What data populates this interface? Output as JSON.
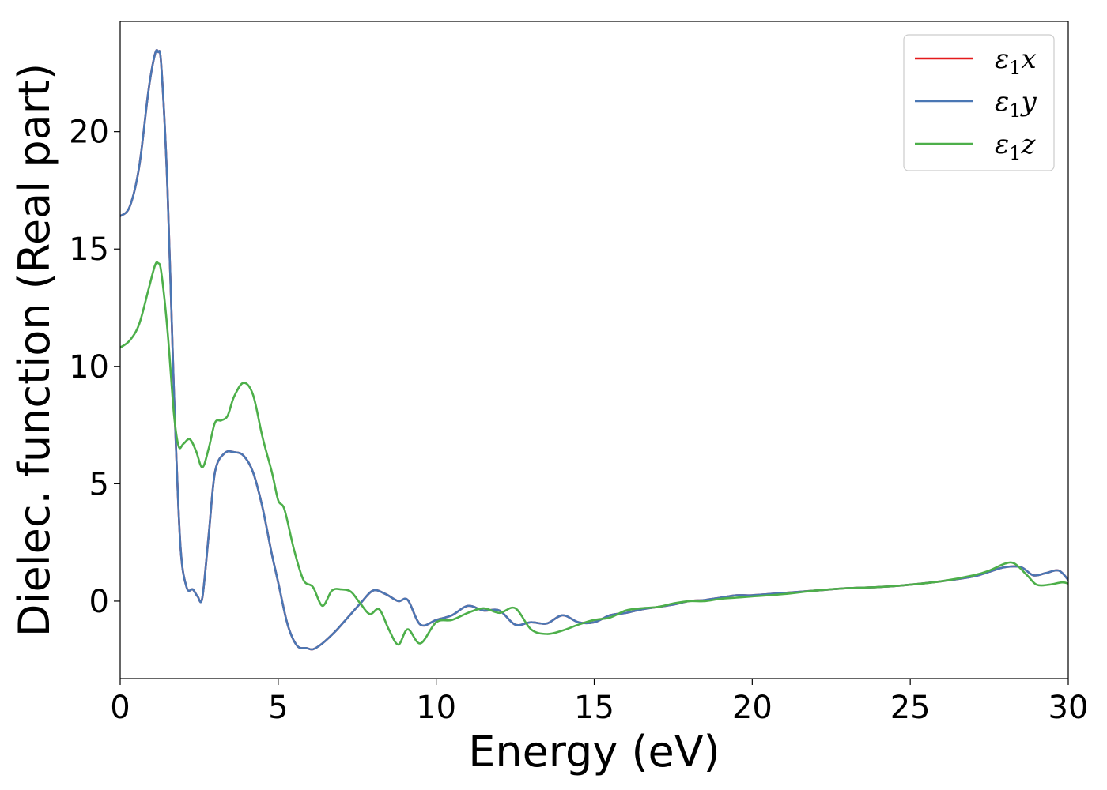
{
  "chart_data": {
    "type": "line",
    "title": "",
    "xlabel": "Energy (eV)",
    "ylabel": "Dielec. function (Real part)",
    "xlim": [
      0,
      30
    ],
    "ylim": [
      -3.3,
      24.7
    ],
    "xticks": [
      0,
      5,
      10,
      15,
      20,
      25,
      30
    ],
    "yticks": [
      0,
      5,
      10,
      15,
      20
    ],
    "grid": false,
    "legend_position": "top-right",
    "series": [
      {
        "name": "ε₁x",
        "legend_base": "ε",
        "legend_sub": "1",
        "legend_suffix": "x",
        "color": "#e41a1c",
        "x": [
          0,
          0.3,
          0.6,
          0.9,
          1.1,
          1.2,
          1.3,
          1.5,
          1.7,
          1.9,
          2.1,
          2.3,
          2.45,
          2.6,
          2.8,
          3.0,
          3.3,
          3.6,
          3.9,
          4.2,
          4.5,
          4.8,
          5.0,
          5.3,
          5.6,
          5.9,
          6.1,
          6.4,
          6.8,
          7.2,
          7.6,
          8.0,
          8.4,
          8.8,
          9.1,
          9.5,
          10.0,
          10.5,
          11.0,
          11.5,
          12.0,
          12.5,
          13.0,
          13.5,
          14.0,
          14.5,
          15.0,
          15.5,
          16.0,
          16.5,
          17.0,
          17.5,
          18.0,
          18.5,
          19.0,
          19.5,
          20.0,
          21.0,
          22.0,
          23.0,
          24.0,
          25.0,
          26.0,
          27.0,
          27.5,
          28.0,
          28.5,
          28.9,
          29.3,
          29.7,
          30.0
        ],
        "values": [
          16.4,
          16.8,
          18.5,
          21.8,
          23.3,
          23.4,
          22.8,
          17.5,
          9.0,
          2.5,
          0.6,
          0.5,
          0.2,
          0.15,
          2.8,
          5.5,
          6.3,
          6.35,
          6.2,
          5.5,
          4.0,
          2.0,
          0.8,
          -1.0,
          -1.9,
          -2.0,
          -2.05,
          -1.8,
          -1.3,
          -0.7,
          -0.1,
          0.45,
          0.3,
          0.0,
          0.05,
          -1.0,
          -0.8,
          -0.6,
          -0.2,
          -0.4,
          -0.4,
          -1.0,
          -0.9,
          -0.95,
          -0.6,
          -0.9,
          -0.9,
          -0.6,
          -0.5,
          -0.35,
          -0.25,
          -0.15,
          0.0,
          0.05,
          0.15,
          0.25,
          0.25,
          0.35,
          0.45,
          0.55,
          0.6,
          0.7,
          0.85,
          1.05,
          1.25,
          1.45,
          1.45,
          1.1,
          1.2,
          1.3,
          0.9
        ]
      },
      {
        "name": "ε₁y",
        "legend_base": "ε",
        "legend_sub": "1",
        "legend_suffix": "y",
        "color": "#4a77b4",
        "x": [
          0,
          0.3,
          0.6,
          0.9,
          1.1,
          1.2,
          1.3,
          1.5,
          1.7,
          1.9,
          2.1,
          2.3,
          2.45,
          2.6,
          2.8,
          3.0,
          3.3,
          3.6,
          3.9,
          4.2,
          4.5,
          4.8,
          5.0,
          5.3,
          5.6,
          5.9,
          6.1,
          6.4,
          6.8,
          7.2,
          7.6,
          8.0,
          8.4,
          8.8,
          9.1,
          9.5,
          10.0,
          10.5,
          11.0,
          11.5,
          12.0,
          12.5,
          13.0,
          13.5,
          14.0,
          14.5,
          15.0,
          15.5,
          16.0,
          16.5,
          17.0,
          17.5,
          18.0,
          18.5,
          19.0,
          19.5,
          20.0,
          21.0,
          22.0,
          23.0,
          24.0,
          25.0,
          26.0,
          27.0,
          27.5,
          28.0,
          28.5,
          28.9,
          29.3,
          29.7,
          30.0
        ],
        "values": [
          16.4,
          16.8,
          18.5,
          21.8,
          23.3,
          23.4,
          22.8,
          17.5,
          9.0,
          2.5,
          0.6,
          0.5,
          0.2,
          0.15,
          2.8,
          5.5,
          6.3,
          6.35,
          6.2,
          5.5,
          4.0,
          2.0,
          0.8,
          -1.0,
          -1.9,
          -2.0,
          -2.05,
          -1.8,
          -1.3,
          -0.7,
          -0.1,
          0.45,
          0.3,
          0.0,
          0.05,
          -1.0,
          -0.8,
          -0.6,
          -0.2,
          -0.4,
          -0.4,
          -1.0,
          -0.9,
          -0.95,
          -0.6,
          -0.9,
          -0.9,
          -0.6,
          -0.5,
          -0.35,
          -0.25,
          -0.15,
          0.0,
          0.05,
          0.15,
          0.25,
          0.25,
          0.35,
          0.45,
          0.55,
          0.6,
          0.7,
          0.85,
          1.05,
          1.25,
          1.45,
          1.45,
          1.1,
          1.2,
          1.3,
          0.9
        ]
      },
      {
        "name": "ε₁z",
        "legend_base": "ε",
        "legend_sub": "1",
        "legend_suffix": "z",
        "color": "#4daf4a",
        "x": [
          0,
          0.3,
          0.6,
          0.9,
          1.1,
          1.2,
          1.3,
          1.5,
          1.7,
          1.85,
          2.0,
          2.2,
          2.4,
          2.6,
          2.8,
          3.0,
          3.2,
          3.4,
          3.6,
          3.9,
          4.2,
          4.5,
          4.8,
          5.0,
          5.2,
          5.5,
          5.8,
          6.1,
          6.4,
          6.7,
          7.0,
          7.3,
          7.6,
          7.9,
          8.2,
          8.5,
          8.8,
          9.1,
          9.5,
          10.0,
          10.5,
          11.0,
          11.5,
          12.0,
          12.5,
          13.0,
          13.5,
          14.0,
          14.5,
          15.0,
          15.5,
          16.0,
          16.5,
          17.0,
          17.5,
          18.0,
          18.5,
          19.0,
          19.5,
          20.0,
          21.0,
          22.0,
          23.0,
          24.0,
          25.0,
          26.0,
          27.0,
          27.5,
          28.0,
          28.3,
          28.7,
          29.0,
          29.4,
          29.8,
          30.0
        ],
        "values": [
          10.8,
          11.1,
          11.8,
          13.3,
          14.3,
          14.4,
          14.0,
          11.5,
          8.0,
          6.6,
          6.7,
          6.9,
          6.4,
          5.7,
          6.5,
          7.6,
          7.7,
          7.9,
          8.7,
          9.3,
          8.8,
          7.0,
          5.5,
          4.3,
          3.9,
          2.2,
          0.9,
          0.6,
          -0.2,
          0.45,
          0.5,
          0.4,
          -0.1,
          -0.55,
          -0.35,
          -1.2,
          -1.85,
          -1.2,
          -1.8,
          -0.9,
          -0.8,
          -0.5,
          -0.3,
          -0.5,
          -0.3,
          -1.2,
          -1.4,
          -1.25,
          -1.0,
          -0.8,
          -0.7,
          -0.4,
          -0.3,
          -0.25,
          -0.1,
          0.0,
          0.0,
          0.1,
          0.15,
          0.2,
          0.3,
          0.45,
          0.55,
          0.6,
          0.7,
          0.85,
          1.1,
          1.3,
          1.6,
          1.6,
          1.1,
          0.7,
          0.7,
          0.8,
          0.75
        ]
      }
    ]
  }
}
